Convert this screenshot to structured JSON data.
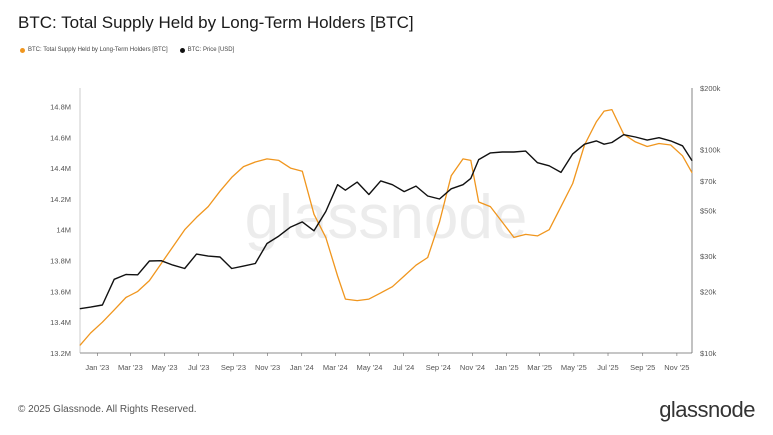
{
  "page": {
    "title": "BTC: Total Supply Held by Long-Term Holders [BTC]",
    "copyright": "© 2025 Glassnode. All Rights Reserved.",
    "logo": "glassnode",
    "watermark": "glassnode"
  },
  "chart_data": {
    "type": "line",
    "title": "BTC: Total Supply Held by Long-Term Holders [BTC]",
    "grid": false,
    "legend_placement": "top-left",
    "x_labels": [
      "Jan '23",
      "Mar '23",
      "May '23",
      "Jul '23",
      "Sep '23",
      "Nov '23",
      "Jan '24",
      "Mar '24",
      "May '24",
      "Jul '24",
      "Sep '24",
      "Nov '24",
      "Jan '25",
      "Mar '25",
      "May '25",
      "Jul '25",
      "Sep '25",
      "Nov '25"
    ],
    "x_range": [
      "2022-12-01",
      "2025-11-28"
    ],
    "y_left": {
      "ticks": [
        "14.8M",
        "14.6M",
        "14.4M",
        "14.2M",
        "14M",
        "13.8M",
        "13.6M",
        "13.4M",
        "13.2M"
      ],
      "tick_values": [
        14.8,
        14.6,
        14.4,
        14.2,
        14.0,
        13.8,
        13.6,
        13.4,
        13.2
      ],
      "unit": "M BTC",
      "range": [
        13.2,
        14.92
      ]
    },
    "y_right": {
      "scale": "log",
      "ticks": [
        "$200k",
        "$100k",
        "$70k",
        "$50k",
        "$30k",
        "$20k",
        "$10k"
      ],
      "tick_values": [
        200000,
        100000,
        70000,
        50000,
        30000,
        20000,
        10000
      ],
      "range": [
        10000,
        200000
      ]
    },
    "series": [
      {
        "name": "BTC: Total Supply Held by Long-Term Holders [BTC]",
        "color": "#f0961e",
        "axis": "left",
        "points": [
          [
            "2022-12-01",
            13.25
          ],
          [
            "2022-12-20",
            13.33
          ],
          [
            "2023-01-10",
            13.4
          ],
          [
            "2023-01-31",
            13.48
          ],
          [
            "2023-02-21",
            13.56
          ],
          [
            "2023-03-14",
            13.6
          ],
          [
            "2023-04-04",
            13.67
          ],
          [
            "2023-04-25",
            13.78
          ],
          [
            "2023-05-16",
            13.89
          ],
          [
            "2023-06-06",
            14.0
          ],
          [
            "2023-06-27",
            14.08
          ],
          [
            "2023-07-18",
            14.15
          ],
          [
            "2023-08-08",
            14.25
          ],
          [
            "2023-08-29",
            14.34
          ],
          [
            "2023-09-19",
            14.41
          ],
          [
            "2023-10-10",
            14.44
          ],
          [
            "2023-10-31",
            14.46
          ],
          [
            "2023-11-21",
            14.45
          ],
          [
            "2023-12-12",
            14.4
          ],
          [
            "2024-01-02",
            14.38
          ],
          [
            "2024-01-23",
            14.1
          ],
          [
            "2024-02-13",
            13.95
          ],
          [
            "2024-03-05",
            13.7
          ],
          [
            "2024-03-19",
            13.55
          ],
          [
            "2024-04-09",
            13.54
          ],
          [
            "2024-04-30",
            13.55
          ],
          [
            "2024-05-21",
            13.59
          ],
          [
            "2024-06-11",
            13.63
          ],
          [
            "2024-07-02",
            13.7
          ],
          [
            "2024-07-23",
            13.77
          ],
          [
            "2024-08-13",
            13.82
          ],
          [
            "2024-09-03",
            14.05
          ],
          [
            "2024-09-24",
            14.35
          ],
          [
            "2024-10-15",
            14.46
          ],
          [
            "2024-10-29",
            14.45
          ],
          [
            "2024-11-12",
            14.18
          ],
          [
            "2024-12-03",
            14.15
          ],
          [
            "2024-12-24",
            14.05
          ],
          [
            "2025-01-14",
            13.95
          ],
          [
            "2025-02-04",
            13.97
          ],
          [
            "2025-02-25",
            13.96
          ],
          [
            "2025-03-18",
            14.0
          ],
          [
            "2025-04-08",
            14.15
          ],
          [
            "2025-04-29",
            14.3
          ],
          [
            "2025-05-20",
            14.55
          ],
          [
            "2025-06-10",
            14.7
          ],
          [
            "2025-06-24",
            14.77
          ],
          [
            "2025-07-08",
            14.78
          ],
          [
            "2025-07-29",
            14.62
          ],
          [
            "2025-08-19",
            14.57
          ],
          [
            "2025-09-09",
            14.54
          ],
          [
            "2025-09-30",
            14.56
          ],
          [
            "2025-10-21",
            14.55
          ],
          [
            "2025-11-11",
            14.48
          ],
          [
            "2025-11-28",
            14.37
          ]
        ]
      },
      {
        "name": "BTC: Price [USD]",
        "color": "#111111",
        "axis": "right",
        "points": [
          [
            "2022-12-01",
            16500
          ],
          [
            "2022-12-20",
            16800
          ],
          [
            "2023-01-10",
            17200
          ],
          [
            "2023-01-31",
            23000
          ],
          [
            "2023-02-21",
            24300
          ],
          [
            "2023-03-14",
            24200
          ],
          [
            "2023-04-04",
            28300
          ],
          [
            "2023-04-25",
            28400
          ],
          [
            "2023-05-16",
            27000
          ],
          [
            "2023-06-06",
            26000
          ],
          [
            "2023-06-27",
            30600
          ],
          [
            "2023-07-18",
            29900
          ],
          [
            "2023-08-08",
            29600
          ],
          [
            "2023-08-29",
            26000
          ],
          [
            "2023-09-19",
            26700
          ],
          [
            "2023-10-10",
            27500
          ],
          [
            "2023-10-31",
            34500
          ],
          [
            "2023-11-21",
            37500
          ],
          [
            "2023-12-12",
            41500
          ],
          [
            "2024-01-02",
            44000
          ],
          [
            "2024-01-23",
            39800
          ],
          [
            "2024-02-13",
            49500
          ],
          [
            "2024-03-05",
            67000
          ],
          [
            "2024-03-19",
            63000
          ],
          [
            "2024-04-09",
            69000
          ],
          [
            "2024-04-30",
            60000
          ],
          [
            "2024-05-21",
            70000
          ],
          [
            "2024-06-11",
            67000
          ],
          [
            "2024-07-02",
            62000
          ],
          [
            "2024-07-23",
            66000
          ],
          [
            "2024-08-13",
            59000
          ],
          [
            "2024-09-03",
            57000
          ],
          [
            "2024-09-24",
            64000
          ],
          [
            "2024-10-15",
            67000
          ],
          [
            "2024-10-29",
            72000
          ],
          [
            "2024-11-12",
            89000
          ],
          [
            "2024-12-03",
            96000
          ],
          [
            "2024-12-24",
            97000
          ],
          [
            "2025-01-14",
            97000
          ],
          [
            "2025-02-04",
            98000
          ],
          [
            "2025-02-25",
            86000
          ],
          [
            "2025-03-18",
            83000
          ],
          [
            "2025-04-08",
            77000
          ],
          [
            "2025-04-29",
            95000
          ],
          [
            "2025-05-20",
            106000
          ],
          [
            "2025-06-10",
            110000
          ],
          [
            "2025-06-24",
            106000
          ],
          [
            "2025-07-08",
            108000
          ],
          [
            "2025-07-29",
            118000
          ],
          [
            "2025-08-19",
            115000
          ],
          [
            "2025-09-09",
            111000
          ],
          [
            "2025-09-30",
            114000
          ],
          [
            "2025-10-21",
            110000
          ],
          [
            "2025-11-11",
            104000
          ],
          [
            "2025-11-28",
            88000
          ]
        ]
      }
    ]
  }
}
